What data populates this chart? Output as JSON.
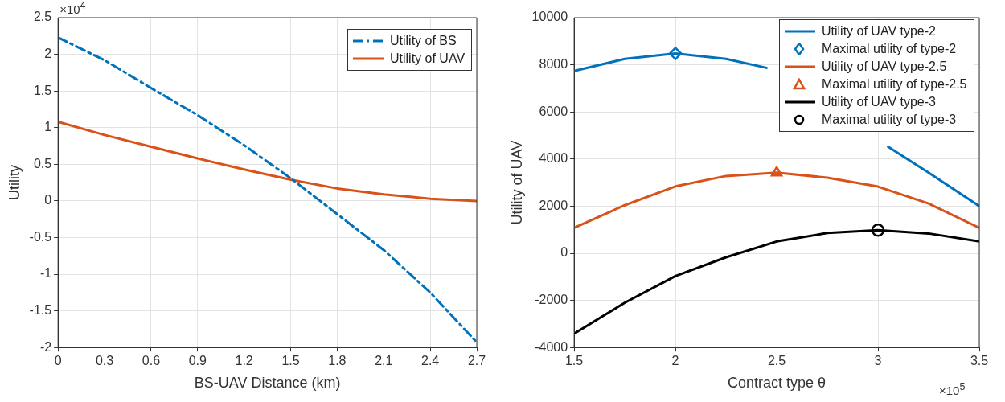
{
  "chart_data": [
    {
      "type": "line",
      "xlabel": "BS-UAV Distance (km)",
      "ylabel": "Utility",
      "annotations": [
        "×10$^{4}$"
      ],
      "x": [
        0,
        0.3,
        0.6,
        0.9,
        1.2,
        1.5,
        1.8,
        2.1,
        2.4,
        2.7
      ],
      "series": [
        {
          "name": "Utility of BS",
          "color": "#0072bd",
          "line_style": "dashed",
          "values": [
            2.23,
            1.92,
            1.54,
            1.17,
            0.76,
            0.31,
            -0.18,
            -0.67,
            -1.25,
            -1.93
          ]
        },
        {
          "name": "Utility of UAV",
          "color": "#d95319",
          "line_style": "solid",
          "values": [
            1.08,
            0.9,
            0.74,
            0.58,
            0.43,
            0.29,
            0.17,
            0.09,
            0.03,
            0
          ]
        }
      ],
      "xlim": [
        0,
        2.7
      ],
      "xticks": [
        0,
        0.3,
        0.6,
        0.9,
        1.2,
        1.5,
        1.8,
        2.1,
        2.4,
        2.7
      ],
      "ylim": [
        -2,
        2.5
      ],
      "yticks": [
        -2,
        -1.5,
        -1,
        -0.5,
        0,
        0.5,
        1,
        1.5,
        2,
        2.5
      ],
      "grid": true,
      "legend": "top right",
      "marker": "none"
    },
    {
      "type": "line",
      "xlabel": "Contract type θ",
      "ylabel": "Utility of UAV",
      "annotations": [
        "×10$^{5}$"
      ],
      "series": [
        {
          "name": "Utility of UAV type-2",
          "color": "#0072bd",
          "x": [
            1.5,
            1.75,
            2,
            2.25,
            2.45,
            2.75,
            3.05,
            3.25,
            3.5
          ],
          "values": [
            7740,
            8250,
            8480,
            8250,
            7870,
            null,
            4520,
            3420,
            2000
          ]
        },
        {
          "name": "Maximal utility of type-2",
          "type": "scatter",
          "marker": "diamond",
          "color": "#0072bd",
          "x": [
            2
          ],
          "values": [
            8480
          ]
        },
        {
          "name": "Utility of UAV type-2.5",
          "color": "#d95319",
          "x": [
            1.5,
            1.75,
            2,
            2.25,
            2.5,
            2.75,
            3,
            3.25,
            3.5
          ],
          "values": [
            1080,
            2040,
            2840,
            3280,
            3420,
            3210,
            2830,
            2110,
            1080
          ]
        },
        {
          "name": "Maximal utility of type-2.5",
          "type": "scatter",
          "marker": "triangle",
          "color": "#d95319",
          "x": [
            2.5
          ],
          "values": [
            3420
          ]
        },
        {
          "name": "Utility of UAV type-3",
          "color": "#000000",
          "x": [
            1.5,
            1.75,
            2,
            2.25,
            2.5,
            2.75,
            3,
            3.25,
            3.5
          ],
          "values": [
            -3410,
            -2100,
            -970,
            -170,
            500,
            860,
            980,
            840,
            500
          ]
        },
        {
          "name": "Maximal utility of type-3",
          "type": "scatter",
          "marker": "circle",
          "color": "#000000",
          "x": [
            3
          ],
          "values": [
            980
          ]
        }
      ],
      "xlim": [
        1.5,
        3.5
      ],
      "xticks": [
        1.5,
        2,
        2.5,
        3,
        3.5
      ],
      "ylim": [
        -4000,
        10000
      ],
      "yticks": [
        -4000,
        -2000,
        0,
        2000,
        4000,
        6000,
        8000,
        10000
      ],
      "grid": true,
      "legend": "top right",
      "marker": "none"
    }
  ]
}
